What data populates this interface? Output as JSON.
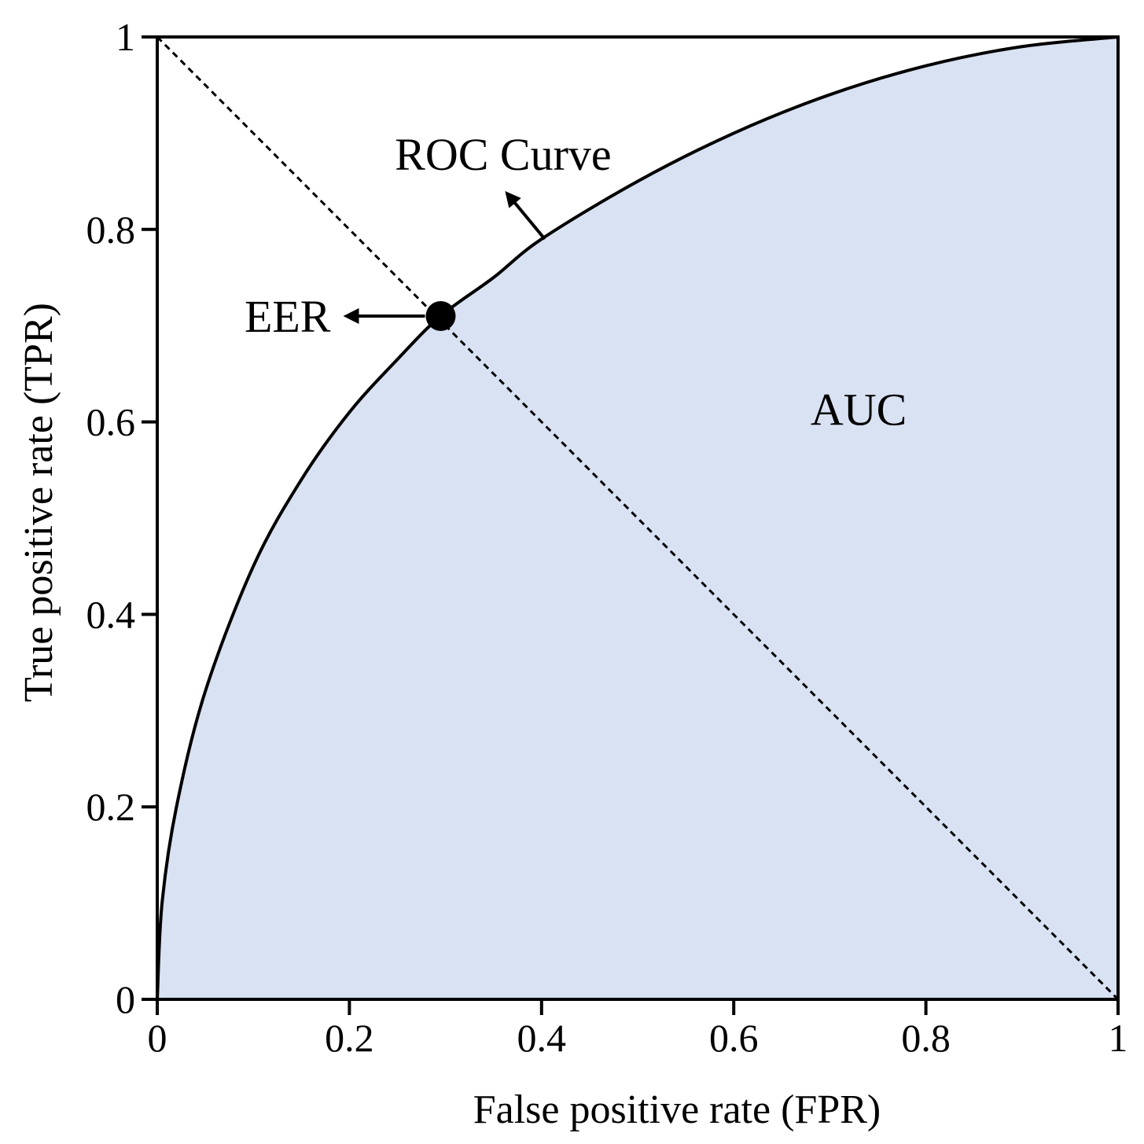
{
  "chart_data": {
    "type": "line",
    "title": "",
    "xlabel": "False positive rate (FPR)",
    "ylabel": "True positive rate (TPR)",
    "xlim": [
      0,
      1
    ],
    "ylim": [
      0,
      1
    ],
    "xticks": [
      "0",
      "0.2",
      "0.4",
      "0.6",
      "0.8",
      "1"
    ],
    "yticks": [
      "0",
      "0.2",
      "0.4",
      "0.6",
      "0.8",
      "1"
    ],
    "grid": false,
    "series": [
      {
        "x": [
          0,
          0.005,
          0.02,
          0.05,
          0.1,
          0.15,
          0.2,
          0.25,
          0.295,
          0.35,
          0.4,
          0.5,
          0.6,
          0.7,
          0.8,
          0.9,
          1
        ],
        "y": [
          0,
          0.1,
          0.2,
          0.32,
          0.45,
          0.54,
          0.61,
          0.665,
          0.71,
          0.75,
          0.79,
          0.85,
          0.9,
          0.94,
          0.97,
          0.99,
          1
        ]
      }
    ],
    "reference_line": {
      "x": [
        0,
        1
      ],
      "y": [
        1,
        0
      ],
      "style": "dashed"
    },
    "shaded_area_label": "AUC",
    "annotations": [
      {
        "text": "ROC Curve",
        "target": [
          0.405,
          0.79
        ]
      },
      {
        "text": "EER",
        "target": [
          0.295,
          0.71
        ]
      }
    ],
    "eer_point": {
      "x": 0.295,
      "y": 0.71
    },
    "colors": {
      "fill": "#d9e2f3",
      "line": "#000000"
    }
  }
}
